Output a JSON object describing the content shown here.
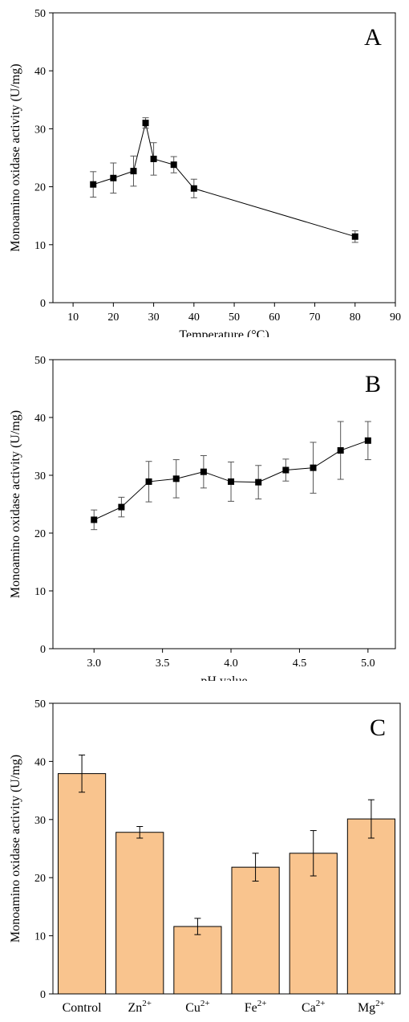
{
  "panels": [
    {
      "label": "A",
      "chart_data": {
        "type": "line",
        "xlabel": "Temperature (°C)",
        "ylabel": "Monoamino oxidase activity (U/mg)",
        "xlim": [
          5,
          90
        ],
        "ylim": [
          0,
          50
        ],
        "xticks": [
          10,
          20,
          30,
          40,
          50,
          60,
          70,
          80,
          90
        ],
        "yticks": [
          0,
          10,
          20,
          30,
          40,
          50
        ],
        "grid": false,
        "marker": "square",
        "series": [
          {
            "x": [
              15,
              20,
              25,
              28,
              30,
              35,
              40,
              80
            ],
            "y": [
              20.4,
              21.5,
              22.7,
              31.0,
              24.8,
              23.8,
              19.7,
              11.4
            ],
            "error": [
              2.2,
              2.6,
              2.6,
              0.9,
              2.8,
              1.4,
              1.6,
              1.0
            ]
          }
        ]
      }
    },
    {
      "label": "B",
      "chart_data": {
        "type": "line",
        "xlabel": "pH value",
        "ylabel": "Monoamino oxidase activity (U/mg)",
        "xlim": [
          2.7,
          5.2
        ],
        "ylim": [
          0,
          50
        ],
        "xticks": [
          "3.0",
          "3.5",
          "4.0",
          "4.5",
          "5.0"
        ],
        "yticks": [
          0,
          10,
          20,
          30,
          40,
          50
        ],
        "grid": false,
        "marker": "square",
        "series": [
          {
            "x": [
              3.0,
              3.2,
              3.4,
              3.6,
              3.8,
              4.0,
              4.2,
              4.4,
              4.6,
              4.8,
              5.0
            ],
            "y": [
              22.3,
              24.5,
              28.9,
              29.4,
              30.6,
              28.9,
              28.8,
              30.9,
              31.3,
              34.3,
              36.0
            ],
            "error": [
              1.7,
              1.7,
              3.5,
              3.3,
              2.8,
              3.4,
              2.9,
              1.9,
              4.4,
              5.0,
              3.3
            ]
          }
        ]
      }
    },
    {
      "label": "C",
      "chart_data": {
        "type": "bar",
        "ylabel": "Monoamino oxidase activity (U/mg)",
        "ylim": [
          0,
          50
        ],
        "yticks": [
          0,
          10,
          20,
          30,
          40,
          50
        ],
        "grid": false,
        "bar_color": "#F9C48E",
        "categories": [
          {
            "base": "Control",
            "sup": ""
          },
          {
            "base": "Zn",
            "sup": "2+"
          },
          {
            "base": "Cu",
            "sup": "2+"
          },
          {
            "base": "Fe",
            "sup": "2+"
          },
          {
            "base": "Ca",
            "sup": "2+"
          },
          {
            "base": "Mg",
            "sup": "2+"
          }
        ],
        "values": [
          37.9,
          27.8,
          11.6,
          21.8,
          24.2,
          30.1
        ],
        "error": [
          3.2,
          1.0,
          1.4,
          2.4,
          3.9,
          3.3
        ]
      }
    }
  ]
}
